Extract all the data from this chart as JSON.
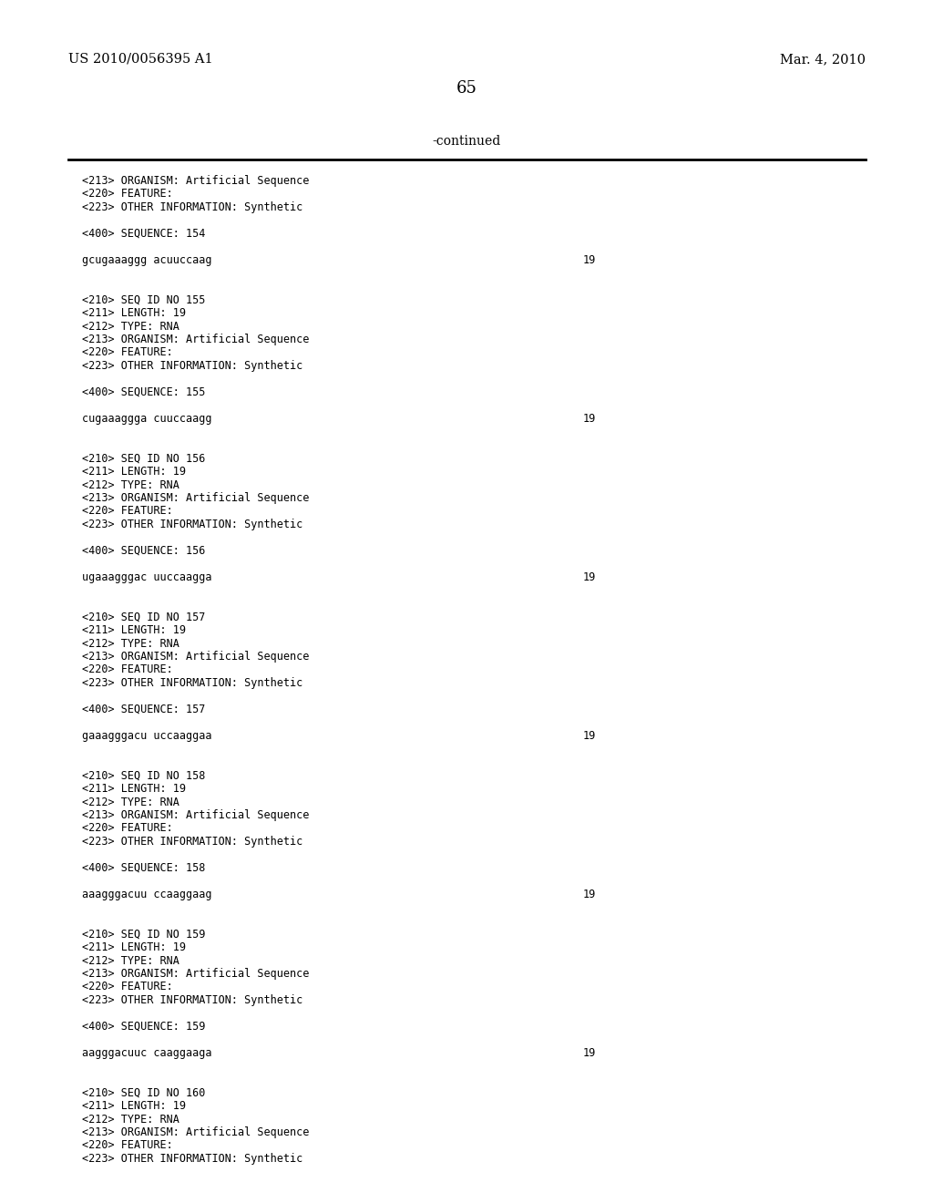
{
  "header_left": "US 2010/0056395 A1",
  "header_right": "Mar. 4, 2010",
  "page_number": "65",
  "continued_text": "-continued",
  "background_color": "#ffffff",
  "text_color": "#000000",
  "mono_font_size": 8.5,
  "header_font_size": 10.5,
  "page_num_font_size": 13,
  "content_lines": [
    {
      "text": "<213> ORGANISM: Artificial Sequence",
      "has_right": false
    },
    {
      "text": "<220> FEATURE:",
      "has_right": false
    },
    {
      "text": "<223> OTHER INFORMATION: Synthetic",
      "has_right": false
    },
    {
      "text": "",
      "has_right": false
    },
    {
      "text": "<400> SEQUENCE: 154",
      "has_right": false
    },
    {
      "text": "",
      "has_right": false
    },
    {
      "text": "gcugaaaggg acuuccaag",
      "has_right": true,
      "right_text": "19"
    },
    {
      "text": "",
      "has_right": false
    },
    {
      "text": "",
      "has_right": false
    },
    {
      "text": "<210> SEQ ID NO 155",
      "has_right": false
    },
    {
      "text": "<211> LENGTH: 19",
      "has_right": false
    },
    {
      "text": "<212> TYPE: RNA",
      "has_right": false
    },
    {
      "text": "<213> ORGANISM: Artificial Sequence",
      "has_right": false
    },
    {
      "text": "<220> FEATURE:",
      "has_right": false
    },
    {
      "text": "<223> OTHER INFORMATION: Synthetic",
      "has_right": false
    },
    {
      "text": "",
      "has_right": false
    },
    {
      "text": "<400> SEQUENCE: 155",
      "has_right": false
    },
    {
      "text": "",
      "has_right": false
    },
    {
      "text": "cugaaaggga cuuccaagg",
      "has_right": true,
      "right_text": "19"
    },
    {
      "text": "",
      "has_right": false
    },
    {
      "text": "",
      "has_right": false
    },
    {
      "text": "<210> SEQ ID NO 156",
      "has_right": false
    },
    {
      "text": "<211> LENGTH: 19",
      "has_right": false
    },
    {
      "text": "<212> TYPE: RNA",
      "has_right": false
    },
    {
      "text": "<213> ORGANISM: Artificial Sequence",
      "has_right": false
    },
    {
      "text": "<220> FEATURE:",
      "has_right": false
    },
    {
      "text": "<223> OTHER INFORMATION: Synthetic",
      "has_right": false
    },
    {
      "text": "",
      "has_right": false
    },
    {
      "text": "<400> SEQUENCE: 156",
      "has_right": false
    },
    {
      "text": "",
      "has_right": false
    },
    {
      "text": "ugaaagggac uuccaagga",
      "has_right": true,
      "right_text": "19"
    },
    {
      "text": "",
      "has_right": false
    },
    {
      "text": "",
      "has_right": false
    },
    {
      "text": "<210> SEQ ID NO 157",
      "has_right": false
    },
    {
      "text": "<211> LENGTH: 19",
      "has_right": false
    },
    {
      "text": "<212> TYPE: RNA",
      "has_right": false
    },
    {
      "text": "<213> ORGANISM: Artificial Sequence",
      "has_right": false
    },
    {
      "text": "<220> FEATURE:",
      "has_right": false
    },
    {
      "text": "<223> OTHER INFORMATION: Synthetic",
      "has_right": false
    },
    {
      "text": "",
      "has_right": false
    },
    {
      "text": "<400> SEQUENCE: 157",
      "has_right": false
    },
    {
      "text": "",
      "has_right": false
    },
    {
      "text": "gaaagggacu uccaaggaa",
      "has_right": true,
      "right_text": "19"
    },
    {
      "text": "",
      "has_right": false
    },
    {
      "text": "",
      "has_right": false
    },
    {
      "text": "<210> SEQ ID NO 158",
      "has_right": false
    },
    {
      "text": "<211> LENGTH: 19",
      "has_right": false
    },
    {
      "text": "<212> TYPE: RNA",
      "has_right": false
    },
    {
      "text": "<213> ORGANISM: Artificial Sequence",
      "has_right": false
    },
    {
      "text": "<220> FEATURE:",
      "has_right": false
    },
    {
      "text": "<223> OTHER INFORMATION: Synthetic",
      "has_right": false
    },
    {
      "text": "",
      "has_right": false
    },
    {
      "text": "<400> SEQUENCE: 158",
      "has_right": false
    },
    {
      "text": "",
      "has_right": false
    },
    {
      "text": "aaagggacuu ccaaggaag",
      "has_right": true,
      "right_text": "19"
    },
    {
      "text": "",
      "has_right": false
    },
    {
      "text": "",
      "has_right": false
    },
    {
      "text": "<210> SEQ ID NO 159",
      "has_right": false
    },
    {
      "text": "<211> LENGTH: 19",
      "has_right": false
    },
    {
      "text": "<212> TYPE: RNA",
      "has_right": false
    },
    {
      "text": "<213> ORGANISM: Artificial Sequence",
      "has_right": false
    },
    {
      "text": "<220> FEATURE:",
      "has_right": false
    },
    {
      "text": "<223> OTHER INFORMATION: Synthetic",
      "has_right": false
    },
    {
      "text": "",
      "has_right": false
    },
    {
      "text": "<400> SEQUENCE: 159",
      "has_right": false
    },
    {
      "text": "",
      "has_right": false
    },
    {
      "text": "aagggacuuc caaggaaga",
      "has_right": true,
      "right_text": "19"
    },
    {
      "text": "",
      "has_right": false
    },
    {
      "text": "",
      "has_right": false
    },
    {
      "text": "<210> SEQ ID NO 160",
      "has_right": false
    },
    {
      "text": "<211> LENGTH: 19",
      "has_right": false
    },
    {
      "text": "<212> TYPE: RNA",
      "has_right": false
    },
    {
      "text": "<213> ORGANISM: Artificial Sequence",
      "has_right": false
    },
    {
      "text": "<220> FEATURE:",
      "has_right": false
    },
    {
      "text": "<223> OTHER INFORMATION: Synthetic",
      "has_right": false
    }
  ]
}
